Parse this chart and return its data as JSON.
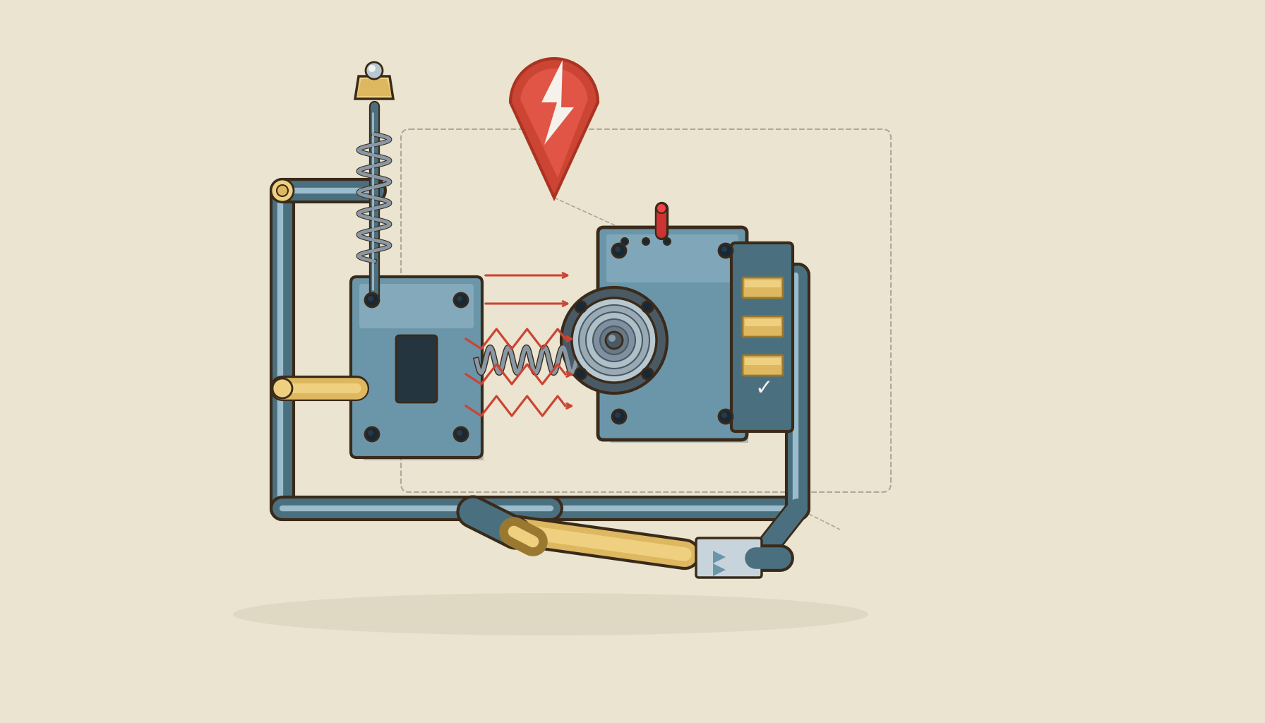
{
  "bg_color": "#EAE4D0",
  "steel_blue": "#6B96AA",
  "steel_blue_dark": "#4A7080",
  "steel_blue_light": "#9BBCCC",
  "steel_blue_mid": "#7AAABB",
  "steel_blue_shadow": "#3A5A6A",
  "gold": "#C9A84C",
  "gold_light": "#DDB860",
  "gold_lighter": "#EED080",
  "gold_dark": "#9A7830",
  "red_orange": "#CC4433",
  "red_light": "#DD5544",
  "outline": "#3A2A1A",
  "white": "#F5F2EC",
  "gray_metal": "#8A9AA5",
  "gray_dark": "#4A5A65",
  "gray_light": "#B8C8D0",
  "spring_gray": "#8898A5",
  "red_pin": "#CC3333",
  "arrow_red": "#CC4433",
  "dark_hole": "#1A2835",
  "cream_light": "#F0EBD8"
}
